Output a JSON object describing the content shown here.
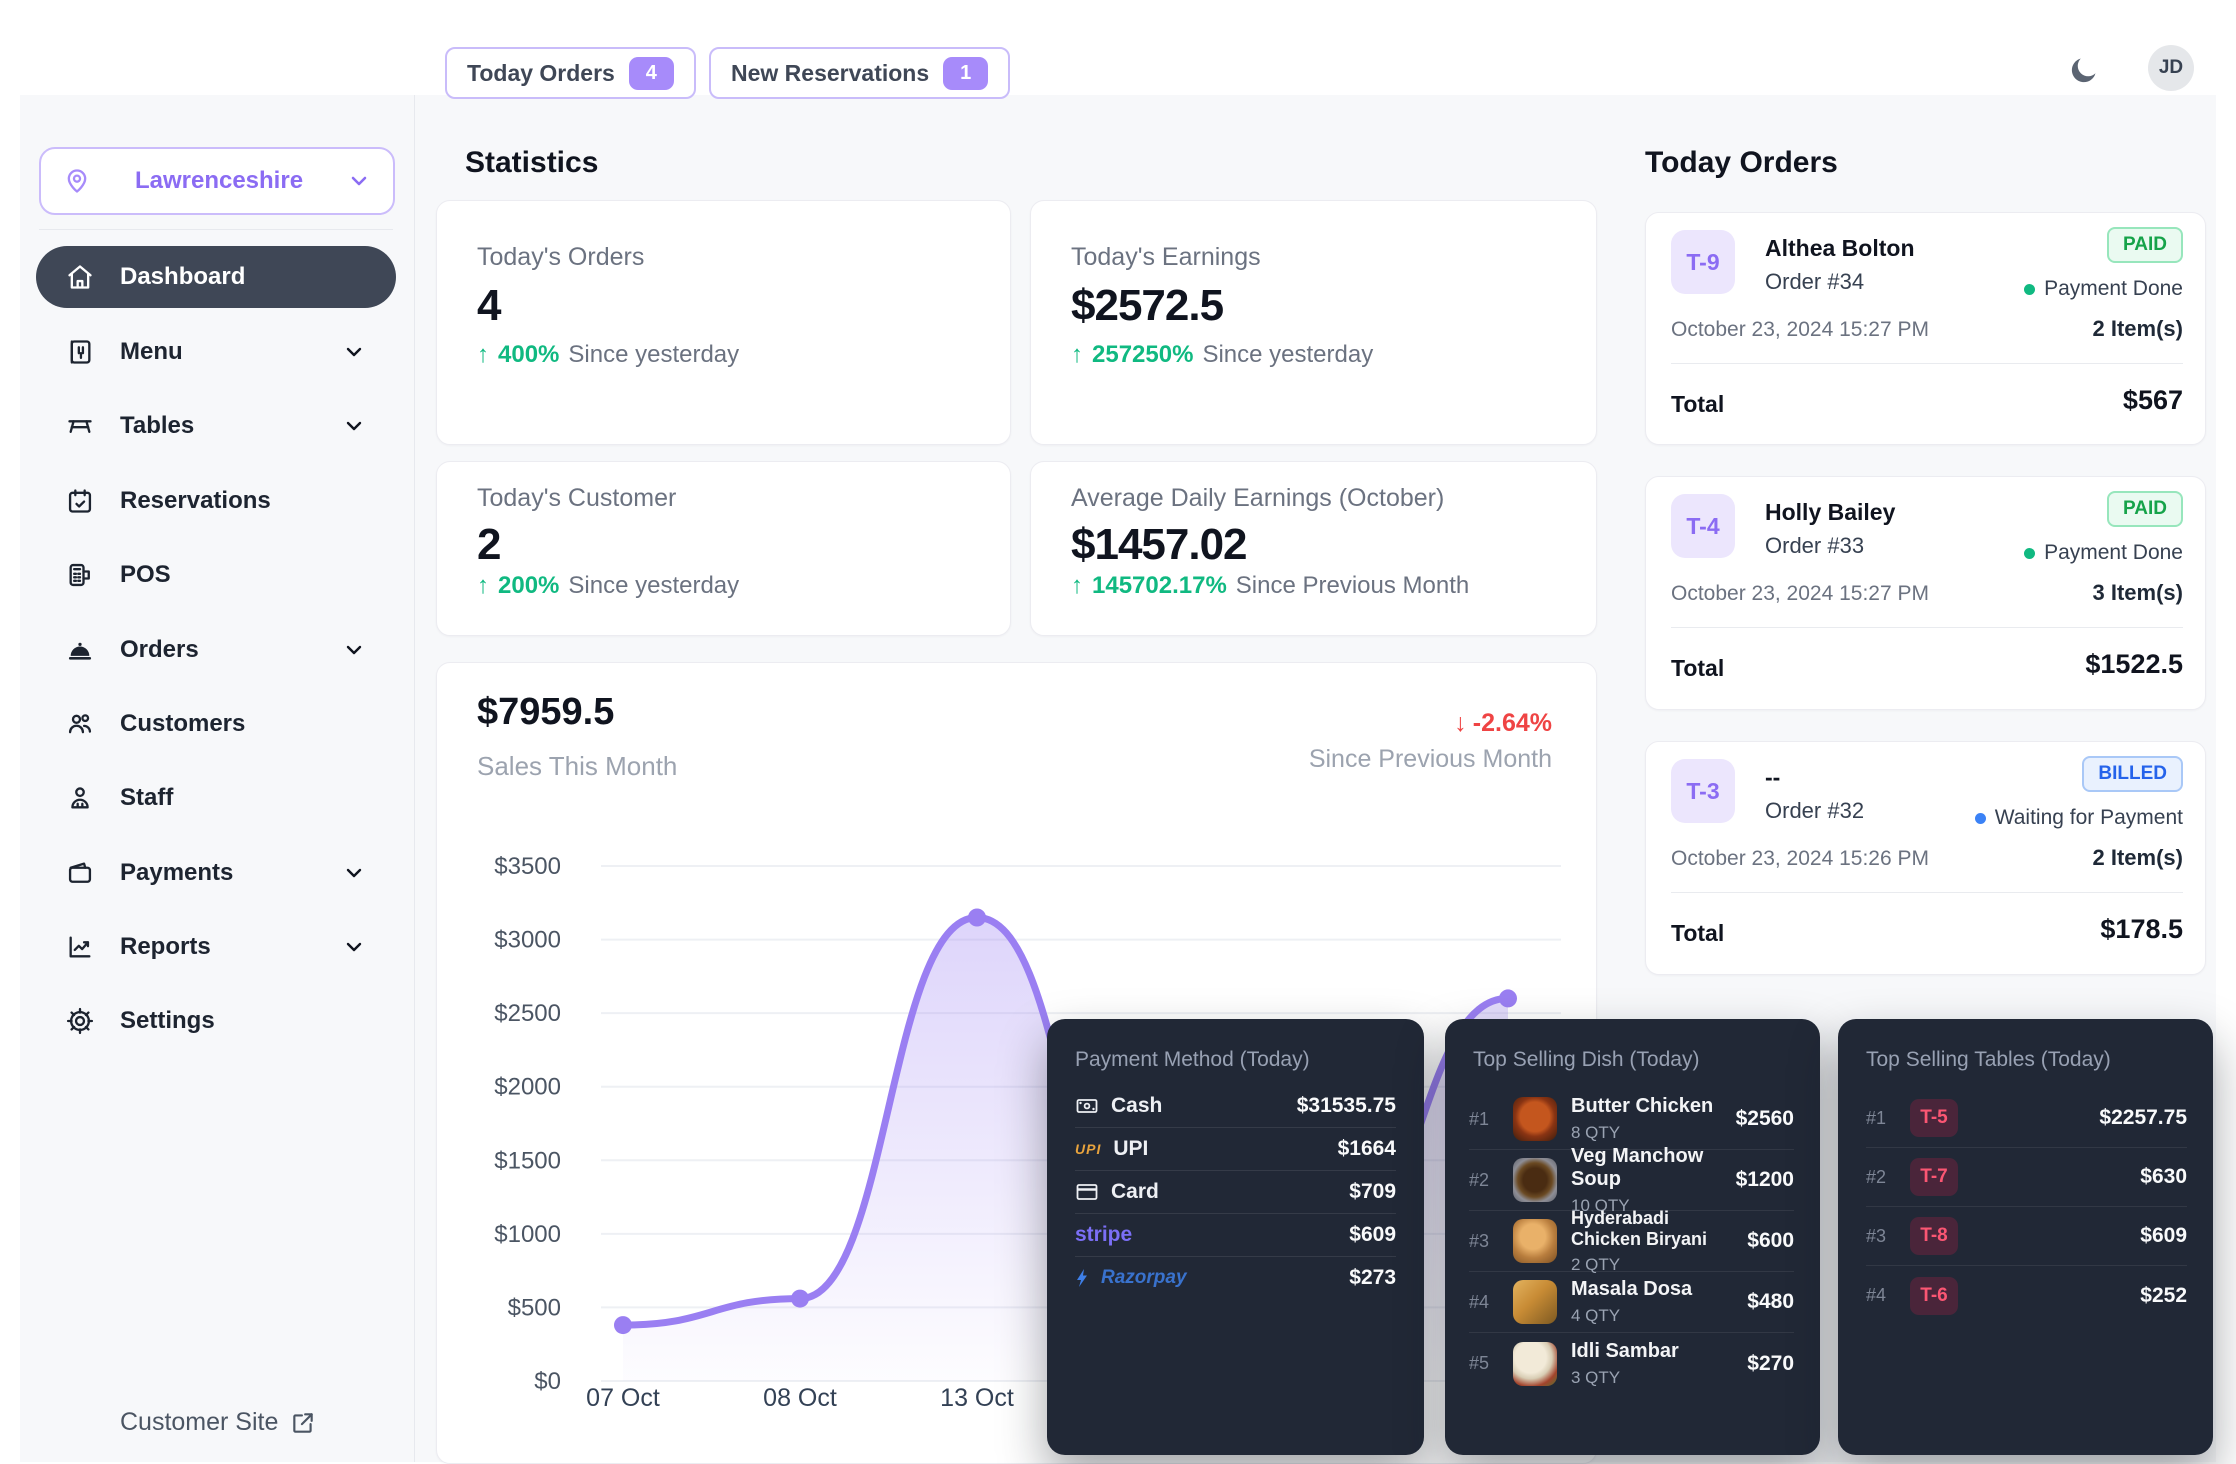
{
  "icons": {
    "up_arrow": "↑",
    "down_arrow": "↓"
  },
  "topbar": {
    "today_orders_label": "Today Orders",
    "today_orders_count": "4",
    "new_reservations_label": "New Reservations",
    "new_reservations_count": "1",
    "avatar_initials": "JD"
  },
  "sidebar": {
    "location": "Lawrenceshire",
    "items": [
      {
        "label": "Dashboard"
      },
      {
        "label": "Menu"
      },
      {
        "label": "Tables"
      },
      {
        "label": "Reservations"
      },
      {
        "label": "POS"
      },
      {
        "label": "Orders"
      },
      {
        "label": "Customers"
      },
      {
        "label": "Staff"
      },
      {
        "label": "Payments"
      },
      {
        "label": "Reports"
      },
      {
        "label": "Settings"
      }
    ],
    "footer_link": "Customer Site"
  },
  "statistics": {
    "title": "Statistics",
    "cards": [
      {
        "label": "Today's Orders",
        "value": "4",
        "change": "400%",
        "period": "Since yesterday"
      },
      {
        "label": "Today's Earnings",
        "value": "$2572.5",
        "change": "257250%",
        "period": "Since yesterday"
      },
      {
        "label": "Today's Customer",
        "value": "2",
        "change": "200%",
        "period": "Since yesterday"
      },
      {
        "label": "Average Daily Earnings (October)",
        "value": "$1457.02",
        "change": "145702.17%",
        "period": "Since Previous Month"
      }
    ]
  },
  "chart_data": {
    "type": "area",
    "title": "$7959.5",
    "subtitle": "Sales This Month",
    "change": "-2.64%",
    "change_period": "Since Previous Month",
    "x": [
      "07 Oct",
      "08 Oct",
      "13 Oct",
      "",
      "",
      ""
    ],
    "values": [
      380,
      560,
      3150,
      700,
      850,
      2600
    ],
    "ylim": [
      0,
      3500
    ],
    "ytick_step": 500,
    "grid": true,
    "line_color": "#9a7ff2"
  },
  "today_orders": {
    "title": "Today Orders",
    "orders": [
      {
        "table": "T-9",
        "customer": "Althea Bolton",
        "order_no": "Order #34",
        "status": "PAID",
        "status_note": "Payment Done",
        "date": "October 23, 2024 15:27 PM",
        "items": "2 Item(s)",
        "total_label": "Total",
        "total": "$567"
      },
      {
        "table": "T-4",
        "customer": "Holly Bailey",
        "order_no": "Order #33",
        "status": "PAID",
        "status_note": "Payment Done",
        "date": "October 23, 2024 15:27 PM",
        "items": "3 Item(s)",
        "total_label": "Total",
        "total": "$1522.5"
      },
      {
        "table": "T-3",
        "customer": "--",
        "order_no": "Order #32",
        "status": "BILLED",
        "status_note": "Waiting for Payment",
        "date": "October 23, 2024 15:26 PM",
        "items": "2 Item(s)",
        "total_label": "Total",
        "total": "$178.5"
      }
    ]
  },
  "panels": {
    "payment_method": {
      "title": "Payment Method (Today)",
      "rows": [
        {
          "method": "Cash",
          "amount": "$31535.75"
        },
        {
          "method": "UPI",
          "amount": "$1664",
          "logo_text": "UPI"
        },
        {
          "method": "Card",
          "amount": "$709"
        },
        {
          "method": "stripe",
          "amount": "$609"
        },
        {
          "method": "Razorpay",
          "amount": "$273"
        }
      ]
    },
    "top_dishes": {
      "title": "Top Selling Dish (Today)",
      "rows": [
        {
          "rank": "#1",
          "name": "Butter Chicken",
          "qty": "8 QTY",
          "amount": "$2560"
        },
        {
          "rank": "#2",
          "name": "Veg Manchow Soup",
          "qty": "10 QTY",
          "amount": "$1200"
        },
        {
          "rank": "#3",
          "name": "Hyderabadi Chicken Biryani",
          "qty": "2 QTY",
          "amount": "$600"
        },
        {
          "rank": "#4",
          "name": "Masala Dosa",
          "qty": "4 QTY",
          "amount": "$480"
        },
        {
          "rank": "#5",
          "name": "Idli Sambar",
          "qty": "3 QTY",
          "amount": "$270"
        }
      ]
    },
    "top_tables": {
      "title": "Top Selling Tables (Today)",
      "rows": [
        {
          "rank": "#1",
          "table": "T-5",
          "amount": "$2257.75"
        },
        {
          "rank": "#2",
          "table": "T-7",
          "amount": "$630"
        },
        {
          "rank": "#3",
          "table": "T-8",
          "amount": "$609"
        },
        {
          "rank": "#4",
          "table": "T-6",
          "amount": "$252"
        }
      ]
    }
  }
}
